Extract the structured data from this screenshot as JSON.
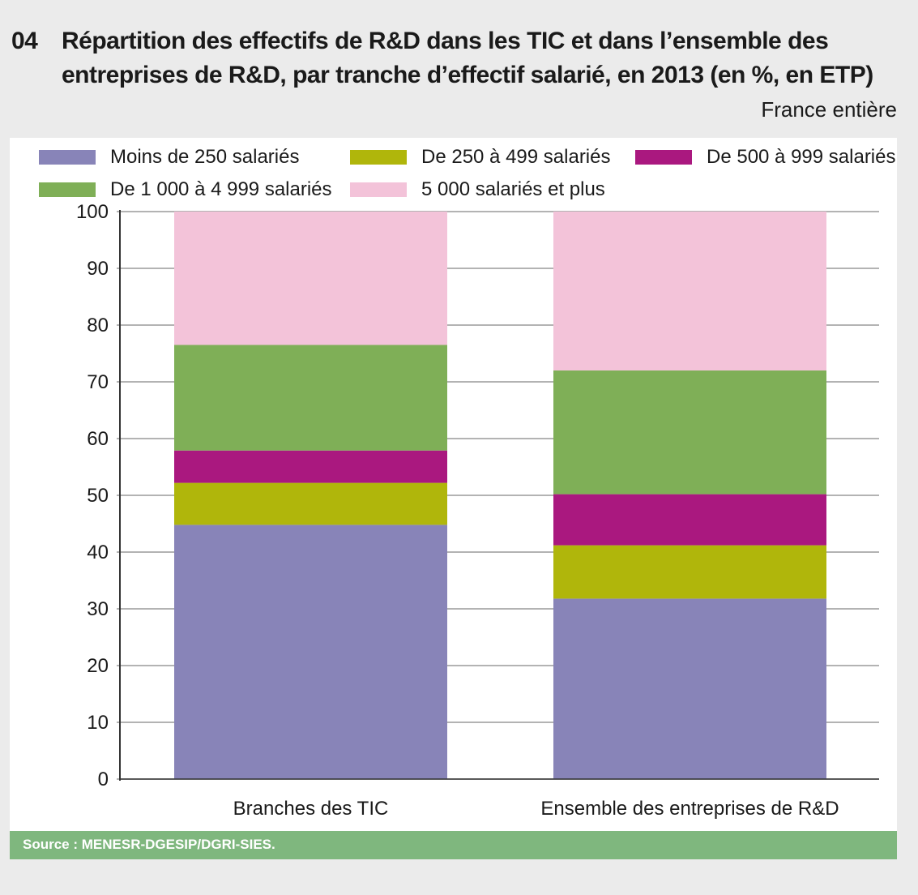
{
  "title": {
    "number": "04",
    "line1": "Répartition des effectifs de R&D dans les TIC et dans l’ensemble des",
    "line2": "entreprises de R&D, par tranche d’effectif salarié, en 2013 (en %, en ETP)",
    "subtitle": "France entière"
  },
  "source": "Source : MENESR-DGESIP/DGRI-SIES.",
  "chart_data": {
    "type": "bar",
    "stacked": true,
    "categories": [
      "Branches des TIC",
      "Ensemble des entreprises de R&D"
    ],
    "series": [
      {
        "name": "Moins de 250 salariés",
        "color": "#8884b8",
        "values": [
          44.8,
          31.8
        ]
      },
      {
        "name": "De 250 à 499 salariés",
        "color": "#b0b60b",
        "values": [
          7.4,
          9.4
        ]
      },
      {
        "name": "De 500 à 999 salariés",
        "color": "#aa187f",
        "values": [
          5.7,
          9.0
        ]
      },
      {
        "name": "De 1 000 à 4 999 salariés",
        "color": "#7faf57",
        "values": [
          18.6,
          21.8
        ]
      },
      {
        "name": "5 000 salariés et plus",
        "color": "#f3c3d9",
        "values": [
          23.5,
          28.0
        ]
      }
    ],
    "ylim": [
      0,
      100
    ],
    "yticks": [
      "0",
      "10",
      "20",
      "30",
      "40",
      "50",
      "60",
      "70",
      "80",
      "90",
      "100"
    ],
    "grid": true,
    "legend": "top",
    "xlabel": "",
    "ylabel": ""
  }
}
